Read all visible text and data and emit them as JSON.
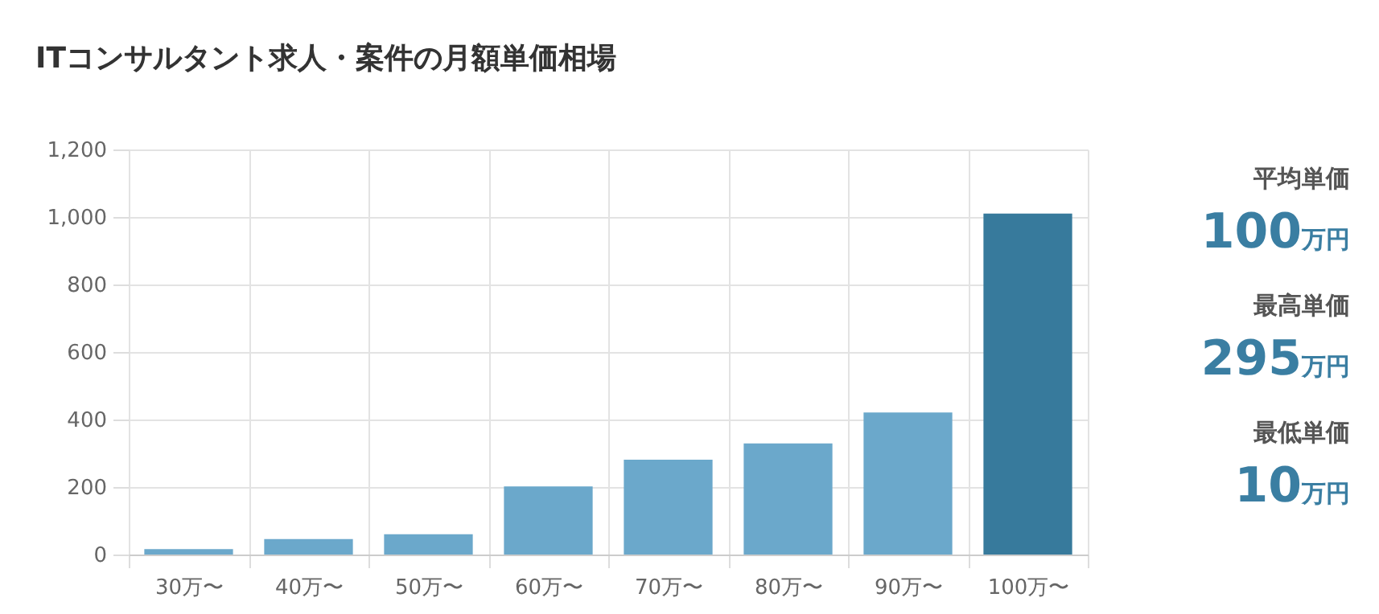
{
  "chart_data": {
    "type": "bar",
    "title": "ITコンサルタント求人・案件の月額単価相場",
    "categories": [
      "30万〜",
      "40万〜",
      "50万〜",
      "60万〜",
      "70万〜",
      "80万〜",
      "90万〜",
      "100万〜"
    ],
    "values": [
      16,
      46,
      60,
      202,
      281,
      329,
      421,
      1010
    ],
    "colors": [
      "#6ba8cb",
      "#6ba8cb",
      "#6ba8cb",
      "#6ba8cb",
      "#6ba8cb",
      "#6ba8cb",
      "#6ba8cb",
      "#377a9c"
    ],
    "ylim": [
      0,
      1200
    ],
    "yticks": [
      0,
      200,
      400,
      600,
      800,
      {
        "value": 1000,
        "label": "1,000"
      },
      {
        "value": 1200,
        "label": "1,200"
      }
    ],
    "grid": true,
    "annotations": [
      "平均単価",
      "100万円",
      "最高単価",
      "295万円",
      "最低単価",
      "10万円"
    ]
  }
}
